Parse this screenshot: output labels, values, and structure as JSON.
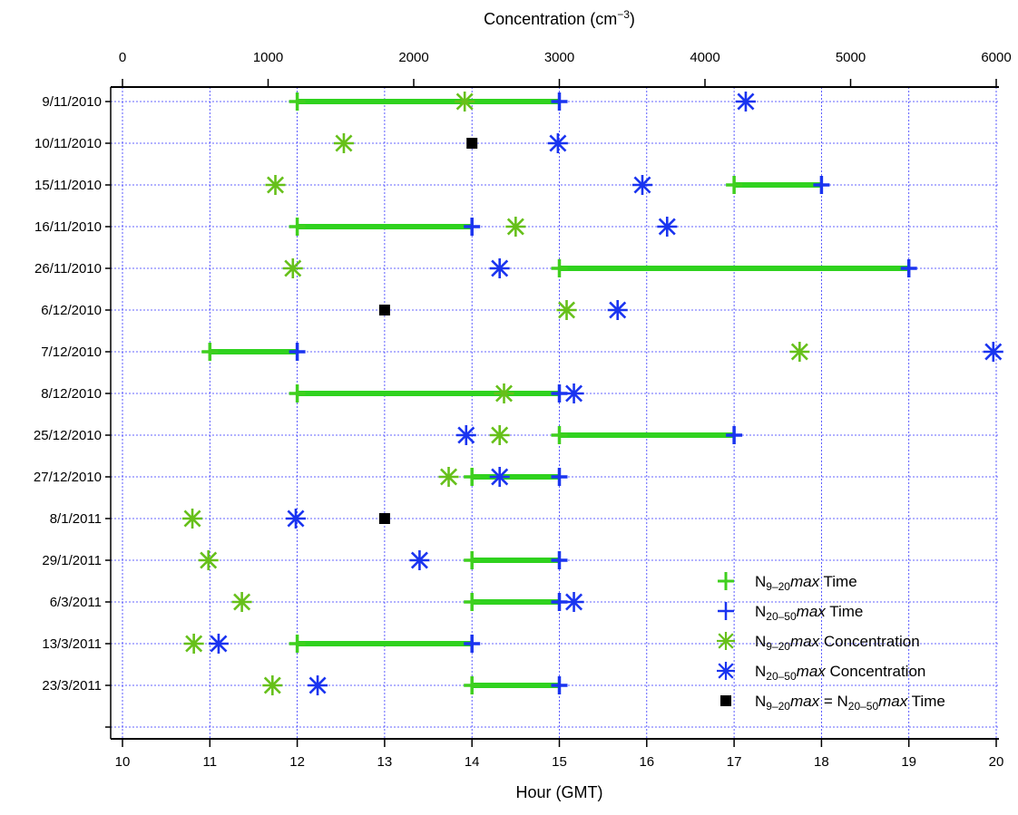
{
  "chart_data": {
    "type": "scatter",
    "x_bottom": {
      "label": "Hour (GMT)",
      "range": [
        10,
        20
      ],
      "ticks": [
        "10",
        "11",
        "12",
        "13",
        "14",
        "15",
        "16",
        "17",
        "18",
        "19",
        "20"
      ]
    },
    "x_top": {
      "label_main": "Concentration (cm",
      "label_exp": "−3",
      "label_close": ")",
      "range": [
        0,
        6000
      ],
      "ticks": [
        "0",
        "1000",
        "2000",
        "3000",
        "4000",
        "5000",
        "6000"
      ]
    },
    "grid": true,
    "legend_position": "bottom-right",
    "colors": {
      "n9_20": "#3fcf1e",
      "n20_50": "#1a34f0",
      "same": "#000000",
      "bar": "#2fd21e",
      "n9_20_conc": "#66c01a",
      "grid": "#3434ff"
    },
    "dates": [
      "9/11/2010",
      "10/11/2010",
      "15/11/2010",
      "16/11/2010",
      "26/11/2010",
      "6/12/2010",
      "7/12/2010",
      "8/12/2010",
      "25/12/2010",
      "27/12/2010",
      "8/1/2011",
      "29/1/2011",
      "6/3/2011",
      "13/3/2011",
      "23/3/2011"
    ],
    "series": {
      "n9_20_time": [
        12,
        null,
        17,
        12,
        15,
        null,
        11,
        12,
        15,
        14,
        null,
        14,
        14,
        12,
        14
      ],
      "n20_50_time": [
        15,
        null,
        18,
        14,
        19,
        null,
        12,
        15,
        17,
        15,
        null,
        15,
        15,
        14,
        15
      ],
      "n9_20_concentration": [
        2350,
        1520,
        1050,
        2700,
        1170,
        3050,
        4650,
        2620,
        2590,
        2240,
        480,
        590,
        820,
        490,
        1030
      ],
      "n20_50_concentration": [
        4280,
        2990,
        3570,
        3740,
        2590,
        3400,
        5980,
        3100,
        2360,
        2590,
        1190,
        2040,
        3100,
        660,
        1340
      ],
      "same_time": [
        null,
        14,
        null,
        null,
        null,
        13,
        null,
        null,
        null,
        null,
        13,
        null,
        null,
        null,
        null
      ]
    },
    "legend": [
      {
        "key": "n9_20_time",
        "main": "N",
        "sub": "9–20",
        "italic": "max",
        "rest": "Time"
      },
      {
        "key": "n20_50_time",
        "main": "N",
        "sub": "20–50",
        "italic": "max",
        "rest": "Time"
      },
      {
        "key": "n9_20_conc",
        "main": "N",
        "sub": "9–20",
        "italic": "max",
        "rest": "Concentration"
      },
      {
        "key": "n20_50_conc",
        "main": "N",
        "sub": "20–50",
        "italic": "max",
        "rest": "Concentration"
      },
      {
        "key": "same",
        "main": "N",
        "sub": "9–20",
        "italic": "max",
        "eq": "= N",
        "sub2": "20–50",
        "italic2": "max",
        "rest": "Time"
      }
    ]
  }
}
